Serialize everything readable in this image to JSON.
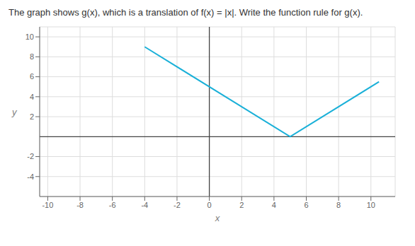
{
  "chart_data": {
    "type": "line",
    "title": "The graph shows g(x), which is a translation of f(x) = |x|. Write the function rule for g(x).",
    "x": [
      -4,
      5,
      10.5
    ],
    "values": [
      9,
      0,
      5.5
    ],
    "color": "#1ab0d8",
    "xlabel": "x",
    "ylabel": "y",
    "xlim": [
      -10.5,
      11.5
    ],
    "ylim": [
      -6,
      11
    ],
    "xticks": [
      -10,
      -8,
      -6,
      -4,
      -2,
      0,
      2,
      4,
      6,
      8,
      10
    ],
    "yticks": [
      -4,
      -2,
      2,
      4,
      6,
      8,
      10
    ],
    "grid": true
  }
}
